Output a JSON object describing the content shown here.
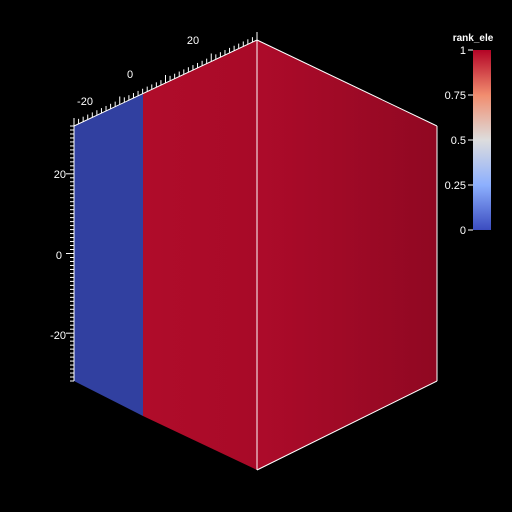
{
  "scalar_bar": {
    "title": "rank_ele",
    "ticks": [
      {
        "value": 1,
        "label": "1"
      },
      {
        "value": 0.75,
        "label": "0.75"
      },
      {
        "value": 0.5,
        "label": "0.5"
      },
      {
        "value": 0.25,
        "label": "0.25"
      },
      {
        "value": 0,
        "label": "0"
      }
    ],
    "colors": {
      "high": "#b40426",
      "mid": "#dddddd",
      "low": "#3b4cc0"
    }
  },
  "axes": {
    "top_axis_labels": [
      "20",
      "0",
      "-20"
    ],
    "left_axis_labels": [
      "20",
      "0",
      "-20"
    ]
  },
  "scene": {
    "background": "#000000",
    "face_colors": {
      "low_region": "#3140a0",
      "high_region": "#b00c2a",
      "right_face": "#a40a28"
    }
  }
}
